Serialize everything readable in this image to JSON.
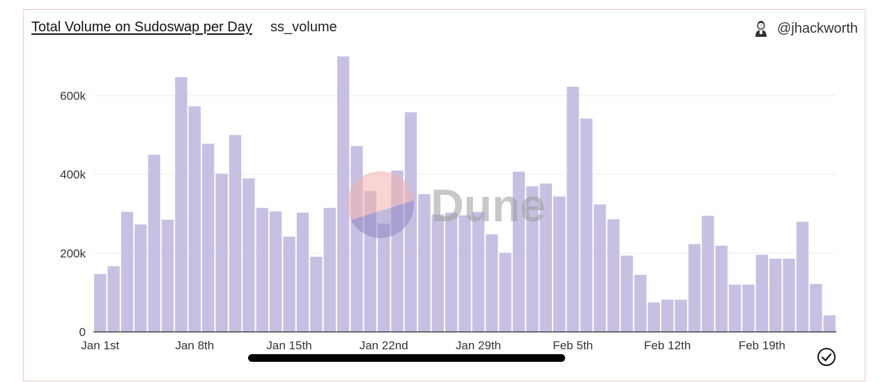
{
  "header": {
    "title": "Total Volume on Sudoswap per Day",
    "subtitle": "ss_volume",
    "author": "@jhackworth"
  },
  "watermark": "Dune",
  "chart_data": {
    "type": "bar",
    "title": "Total Volume on Sudoswap per Day",
    "xlabel": "",
    "ylabel": "",
    "ylim": [
      0,
      700000
    ],
    "y_ticks": [
      {
        "value": 0,
        "label": "0"
      },
      {
        "value": 200000,
        "label": "200k"
      },
      {
        "value": 400000,
        "label": "400k"
      },
      {
        "value": 600000,
        "label": "600k"
      }
    ],
    "x_ticks": [
      {
        "index": 0,
        "label": "Jan 1st"
      },
      {
        "index": 7,
        "label": "Jan 8th"
      },
      {
        "index": 14,
        "label": "Jan 15th"
      },
      {
        "index": 21,
        "label": "Jan 22nd"
      },
      {
        "index": 28,
        "label": "Jan 29th"
      },
      {
        "index": 35,
        "label": "Feb 5th"
      },
      {
        "index": 42,
        "label": "Feb 12th"
      },
      {
        "index": 49,
        "label": "Feb 19th"
      }
    ],
    "grid": true,
    "bar_color": "#c8c0e3",
    "values": [
      147000,
      167000,
      305000,
      273000,
      450000,
      285000,
      647000,
      573000,
      478000,
      402000,
      500000,
      390000,
      315000,
      306000,
      242000,
      303000,
      191000,
      315000,
      700000,
      472000,
      358000,
      275000,
      410000,
      558000,
      350000,
      298000,
      303000,
      296000,
      305000,
      248000,
      201000,
      407000,
      370000,
      377000,
      344000,
      623000,
      542000,
      324000,
      286000,
      194000,
      145000,
      75000,
      82000,
      82000,
      223000,
      295000,
      219000,
      120000,
      120000,
      196000,
      186000,
      186000,
      280000,
      122000,
      42000
    ]
  }
}
